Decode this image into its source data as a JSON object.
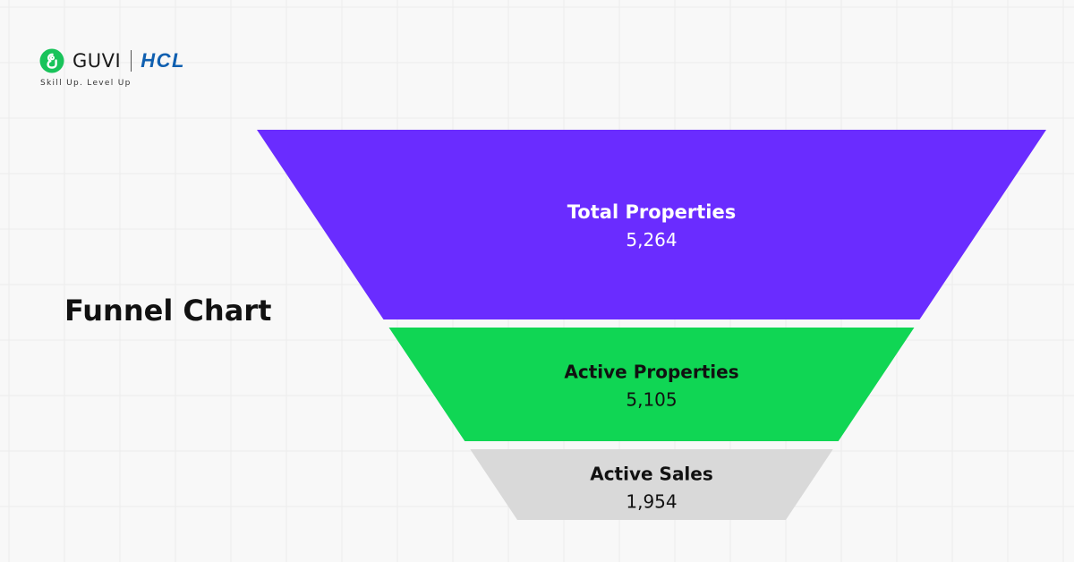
{
  "brand": {
    "guvi_name": "GUVI",
    "hcl_name": "HCL",
    "tagline": "Skill Up. Level Up"
  },
  "colors": {
    "background": "#f8f8f8",
    "grid": "#ececec",
    "guvi_green": "#19c35a",
    "hcl_blue": "#0f5fb0"
  },
  "chart_data": {
    "type": "funnel",
    "title": "Funnel Chart",
    "stages": [
      {
        "label": "Total Properties",
        "value": 5264,
        "display_value": "5,264",
        "color": "#6a2cff",
        "text_color": "#ffffff"
      },
      {
        "label": "Active Properties",
        "value": 5105,
        "display_value": "5,105",
        "color": "#10d654",
        "text_color": "#111111"
      },
      {
        "label": "Active Sales",
        "value": 1954,
        "display_value": "1,954",
        "color": "#d9d9d9",
        "text_color": "#111111"
      }
    ]
  }
}
